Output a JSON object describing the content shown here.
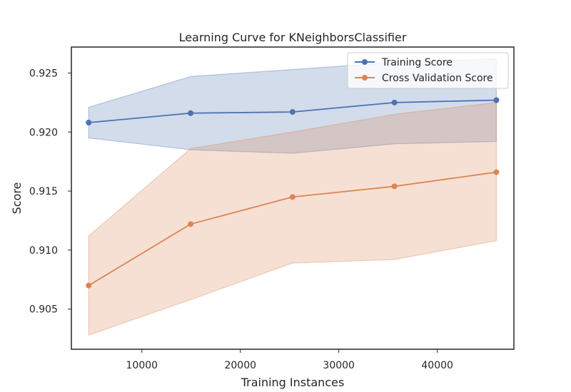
{
  "chart_data": {
    "type": "line",
    "title": "Learning Curve for KNeighborsClassifier",
    "xlabel": "Training Instances",
    "ylabel": "Score",
    "x": [
      4600,
      14950,
      25300,
      35650,
      46000
    ],
    "xlim": [
      2840,
      47780
    ],
    "ylim": [
      0.9016,
      0.9272
    ],
    "xticks": [
      10000,
      20000,
      30000,
      40000
    ],
    "yticks": [
      0.905,
      0.91,
      0.915,
      0.92,
      0.925
    ],
    "ytick_labels": [
      "0.905",
      "0.910",
      "0.915",
      "0.920",
      "0.925"
    ],
    "grid": false,
    "legend_position": "top-right",
    "series": [
      {
        "name": "Training Score",
        "color": "#4c72b0",
        "values": [
          0.9208,
          0.9216,
          0.9217,
          0.9225,
          0.9227
        ],
        "lower": [
          0.9195,
          0.9185,
          0.9182,
          0.919,
          0.9192
        ],
        "upper": [
          0.9221,
          0.9247,
          0.9253,
          0.9259,
          0.9262
        ]
      },
      {
        "name": "Cross Validation Score",
        "color": "#dd8452",
        "values": [
          0.907,
          0.9122,
          0.9145,
          0.9154,
          0.9166
        ],
        "lower": [
          0.9028,
          0.9058,
          0.9089,
          0.9092,
          0.9108
        ],
        "upper": [
          0.9112,
          0.9186,
          0.92,
          0.9215,
          0.9225
        ]
      }
    ]
  }
}
